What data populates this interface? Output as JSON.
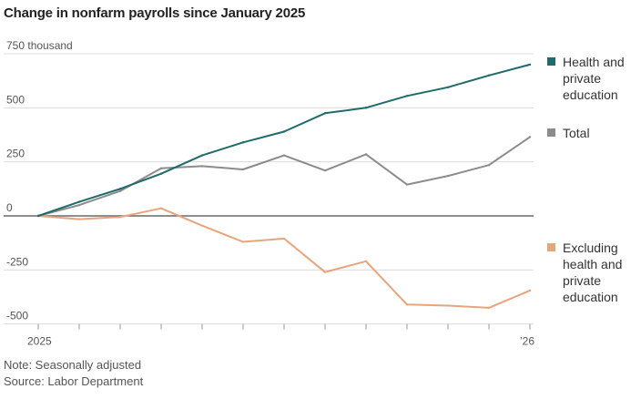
{
  "title": "Change in nonfarm payrolls since January 2025",
  "notes": {
    "note": "Note: Seasonally adjusted",
    "source": "Source: Labor Department"
  },
  "chart_data": {
    "type": "line",
    "title": "Change in nonfarm payrolls since January 2025",
    "xlabel": "",
    "ylabel": "",
    "x": [
      "2025-01",
      "2025-02",
      "2025-03",
      "2025-04",
      "2025-05",
      "2025-06",
      "2025-07",
      "2025-08",
      "2025-09",
      "2025-10",
      "2025-11",
      "2025-12",
      "2026-01"
    ],
    "x_tick_labels": [
      {
        "index": 0,
        "label": "2025"
      },
      {
        "index": 12,
        "label": "’26"
      }
    ],
    "ylim": [
      -500,
      750
    ],
    "y_ticks": [
      {
        "value": 750,
        "label": "750 thousand"
      },
      {
        "value": 500,
        "label": "500"
      },
      {
        "value": 250,
        "label": "250"
      },
      {
        "value": 0,
        "label": "0"
      },
      {
        "value": -250,
        "label": "-250"
      },
      {
        "value": -500,
        "label": "-500"
      }
    ],
    "series": [
      {
        "name": "Health and private education",
        "legend_lines": [
          "Health and",
          "private",
          "education"
        ],
        "color": "#1f6b6b",
        "values": [
          0,
          65,
          125,
          195,
          280,
          340,
          390,
          475,
          500,
          555,
          595,
          650,
          700
        ]
      },
      {
        "name": "Total",
        "legend_lines": [
          "Total"
        ],
        "color": "#8c8c8c",
        "values": [
          0,
          50,
          115,
          220,
          230,
          215,
          280,
          210,
          285,
          145,
          185,
          235,
          365
        ]
      },
      {
        "name": "Excluding health and private education",
        "legend_lines": [
          "Excluding",
          "health and",
          "private",
          "education"
        ],
        "color": "#e8a57c",
        "values": [
          0,
          -15,
          -5,
          35,
          -45,
          -120,
          -105,
          -260,
          -210,
          -410,
          -415,
          -425,
          -345
        ]
      }
    ]
  }
}
